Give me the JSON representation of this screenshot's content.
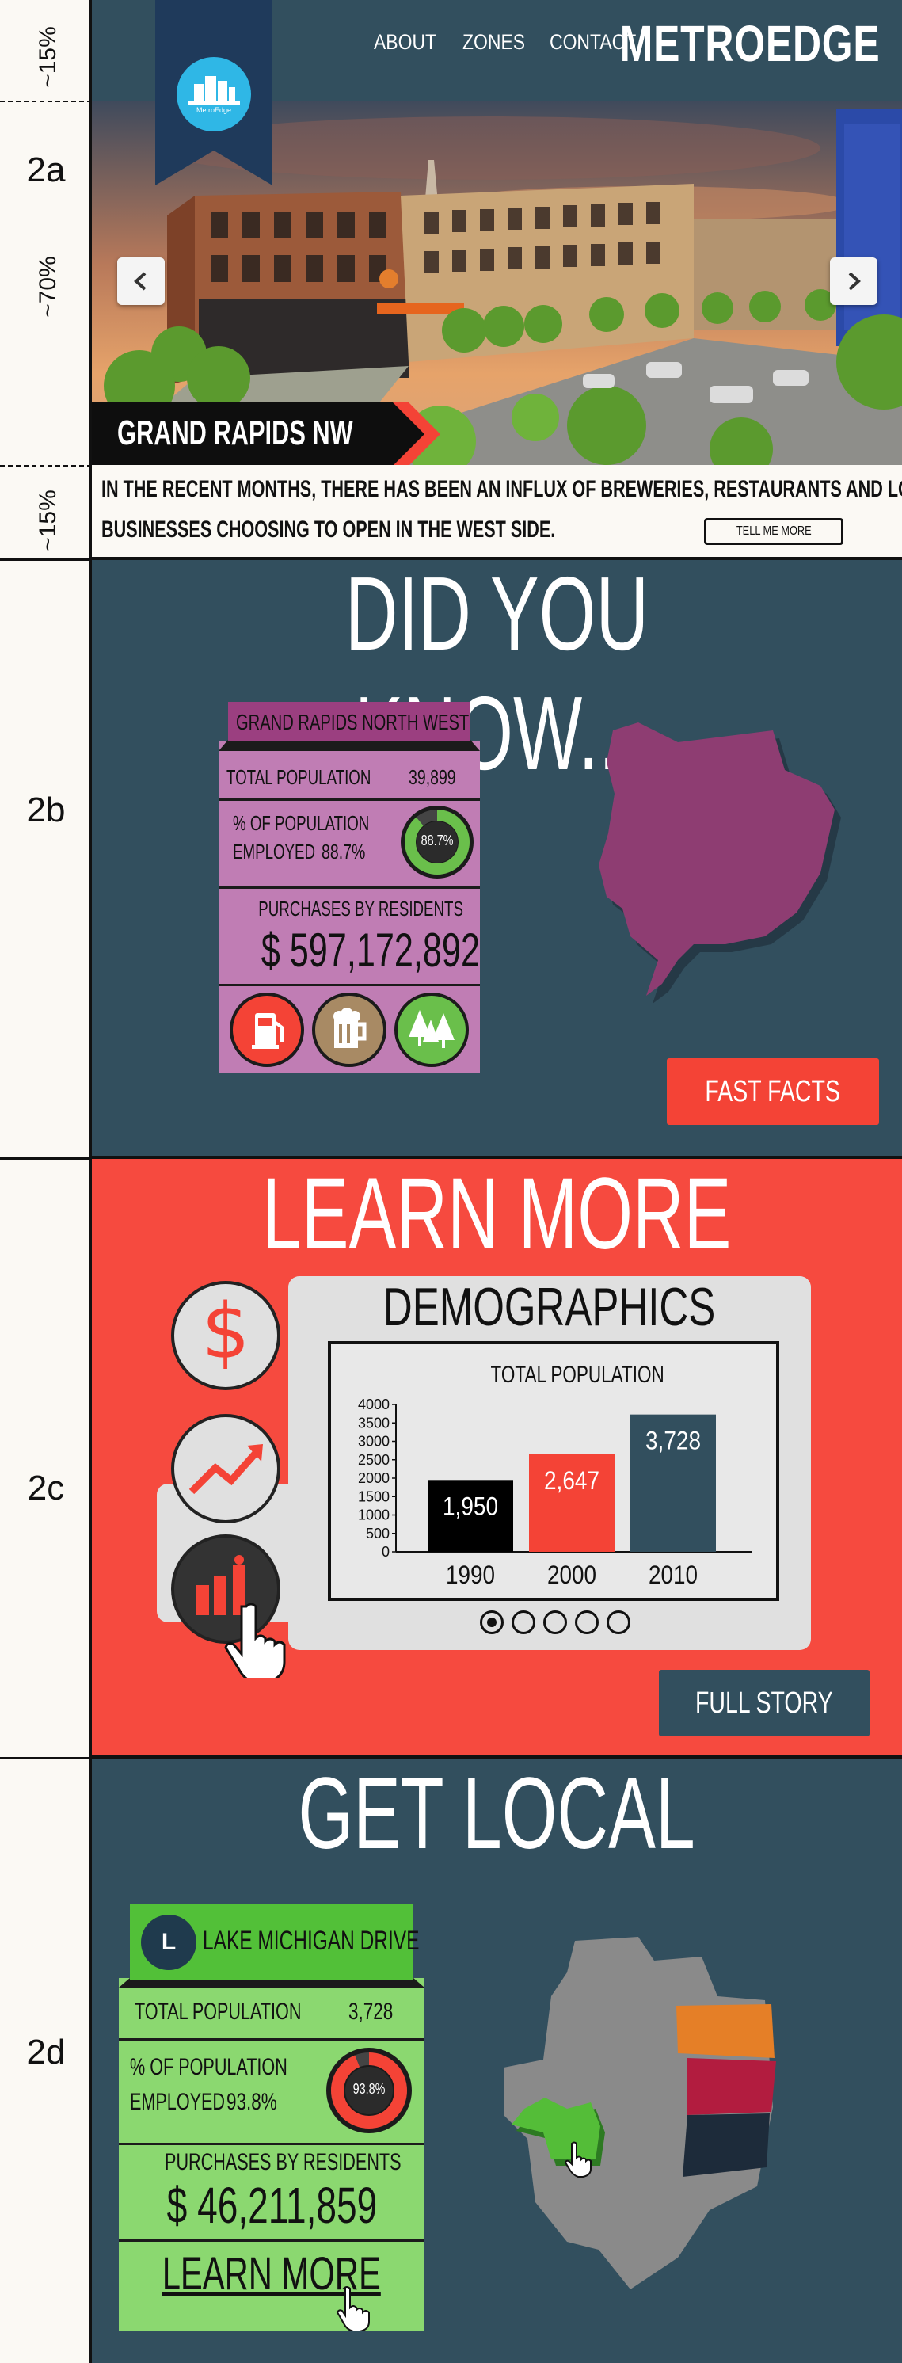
{
  "annotations": {
    "rows": [
      {
        "label": "2a",
        "pct_top": "~15%",
        "pct_mid": "~70%",
        "pct_bottom": "~15%"
      },
      {
        "label": "2b"
      },
      {
        "label": "2c"
      },
      {
        "label": "2d"
      }
    ]
  },
  "header": {
    "nav": [
      "ABOUT",
      "ZONES",
      "CONTACT"
    ],
    "brand": "METROEDGE",
    "logo_text": "MetroEdge"
  },
  "hero": {
    "location": "GRAND RAPIDS NW",
    "prev_icon": "chevron-left-icon",
    "next_icon": "chevron-right-icon"
  },
  "intro": {
    "line1": "IN THE RECENT MONTHS, THERE HAS BEEN AN INFLUX OF BREWERIES, RESTAURANTS AND LOCAL",
    "line2": "BUSINESSES CHOOSING TO OPEN IN THE WEST SIDE.",
    "button": "TELL ME MORE"
  },
  "did_you_know": {
    "title": "DID YOU KNOW...",
    "card_title": "GRAND RAPIDS NORTH WEST",
    "population_label": "TOTAL POPULATION",
    "population_value": "39,899",
    "employed_label_1": "%  OF POPULATION",
    "employed_label_2": "EMPLOYED",
    "employed_value": "88.7%",
    "employed_ring": "88.7%",
    "purchases_label": "PURCHASES BY RESIDENTS",
    "purchases_value": "$ 597,172,892",
    "icons": [
      "gas-pump-icon",
      "beer-mug-icon",
      "trees-icon"
    ],
    "button": "FAST FACTS",
    "colors": {
      "card": "#c07db4",
      "card_title": "#9b3f80",
      "map": "#8e3d72"
    }
  },
  "learn_more": {
    "title": "LEARN MORE",
    "panel_title": "DEMOGRAPHICS",
    "icons": [
      "dollar-icon",
      "trend-up-icon",
      "bar-chart-icon"
    ],
    "button": "FULL STORY",
    "pagination": {
      "total": 5,
      "active": 0
    }
  },
  "chart_data": {
    "type": "bar",
    "title": "TOTAL POPULATION",
    "categories": [
      "1990",
      "2000",
      "2010"
    ],
    "values": [
      1950,
      2647,
      3728
    ],
    "value_labels": [
      "1,950",
      "2,647",
      "3,728"
    ],
    "colors": [
      "#000000",
      "#f44336",
      "#324f5e"
    ],
    "yticks": [
      "0",
      "500",
      "1000",
      "1500",
      "2000",
      "2500",
      "3000",
      "3500",
      "4000"
    ],
    "ylim": [
      0,
      4000
    ]
  },
  "get_local": {
    "title": "GET LOCAL",
    "badge": "L",
    "card_title": "LAKE MICHIGAN DRIVE",
    "population_label": "TOTAL POPULATION",
    "population_value": "3,728",
    "employed_label_1": "%  OF POPULATION",
    "employed_label_2": "EMPLOYED",
    "employed_value": "93.8%",
    "employed_ring": "93.8%",
    "purchases_label": "PURCHASES BY RESIDENTS",
    "purchases_value": "$ 46,211,859",
    "link": "LEARN MORE",
    "colors": {
      "card": "#8bd870",
      "card_title": "#52c038"
    }
  }
}
